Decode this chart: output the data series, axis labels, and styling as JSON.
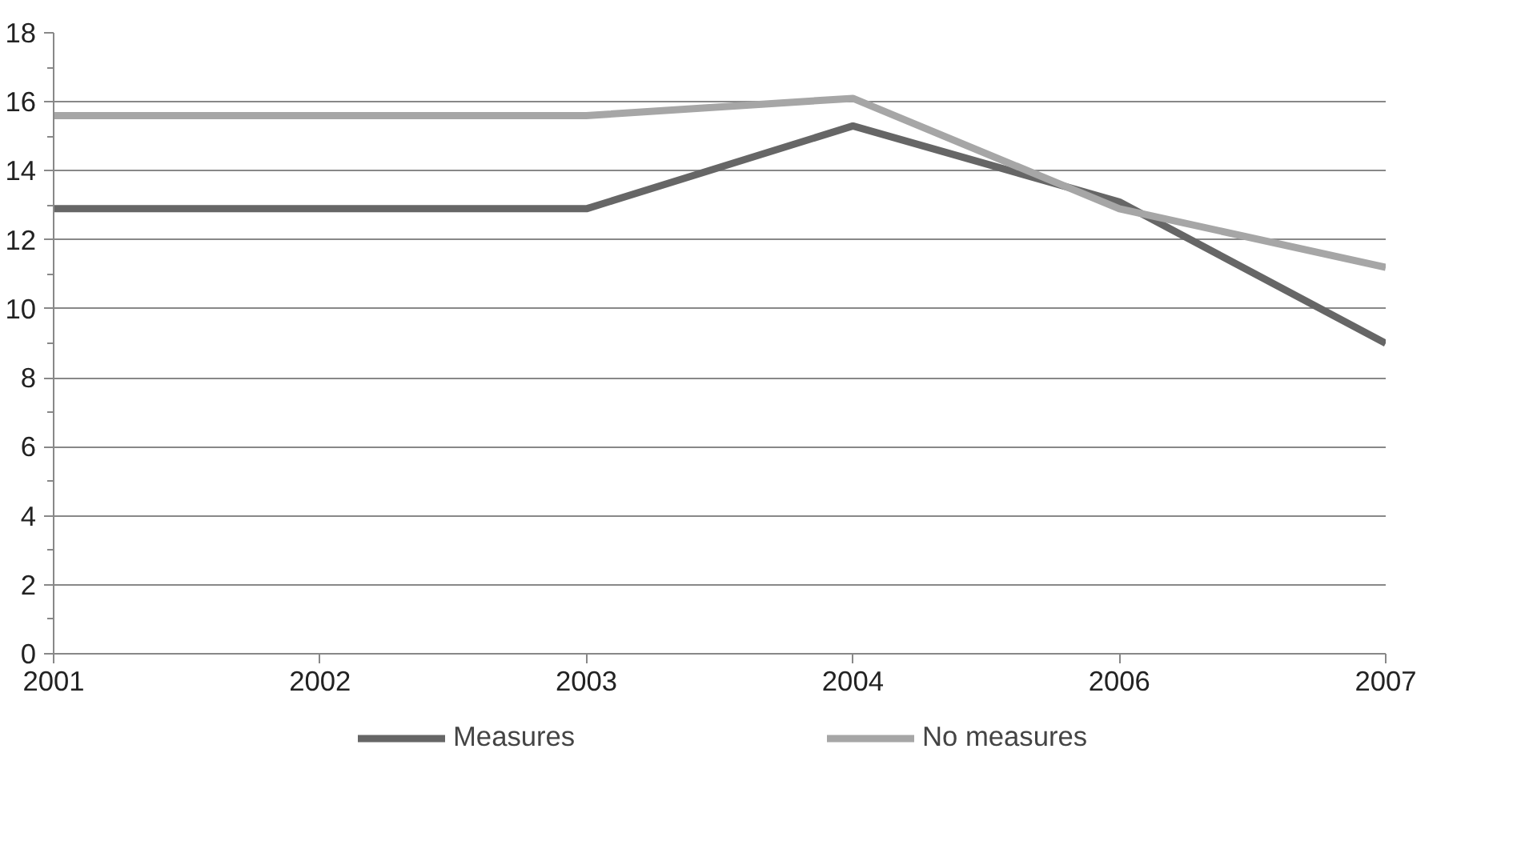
{
  "chart_data": {
    "type": "line",
    "categories": [
      "2001",
      "2002",
      "2003",
      "2004",
      "2006",
      "2007"
    ],
    "series": [
      {
        "name": "Measures",
        "color": "#666666",
        "values": [
          12.9,
          12.9,
          12.9,
          15.3,
          13.1,
          9.0
        ]
      },
      {
        "name": "No measures",
        "color": "#a6a6a6",
        "values": [
          15.6,
          15.6,
          15.6,
          16.1,
          12.9,
          11.2
        ]
      }
    ],
    "ylim": [
      0,
      18
    ],
    "yticks": [
      0,
      2,
      4,
      6,
      8,
      10,
      12,
      14,
      16,
      18
    ],
    "grid": "y",
    "legend": "bottom",
    "marker": "none",
    "line_style": "solid"
  }
}
